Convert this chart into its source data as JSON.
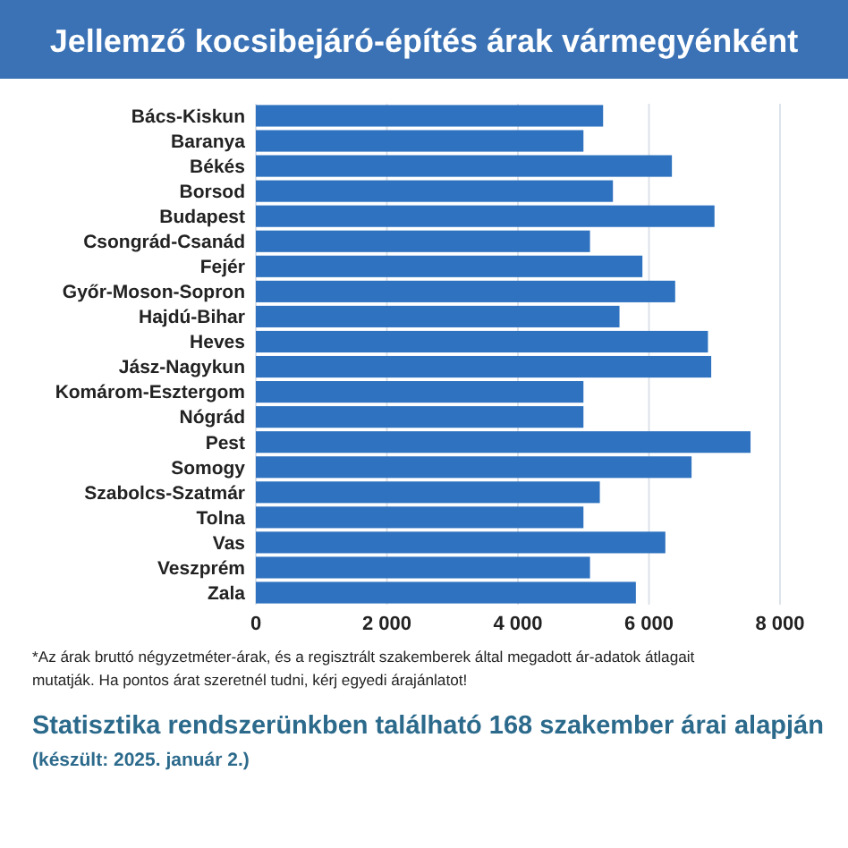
{
  "chart_data": {
    "type": "bar",
    "orientation": "horizontal",
    "title": "Jellemző kocsibejáró-építés árak vármegyénként",
    "categories": [
      "Bács-Kiskun",
      "Baranya",
      "Békés",
      "Borsod",
      "Budapest",
      "Csongrád-Csanád",
      "Fejér",
      "Győr-Moson-Sopron",
      "Hajdú-Bihar",
      "Heves",
      "Jász-Nagykun",
      "Komárom-Esztergom",
      "Nógrád",
      "Pest",
      "Somogy",
      "Szabolcs-Szatmár",
      "Tolna",
      "Vas",
      "Veszprém",
      "Zala"
    ],
    "values": [
      5300,
      5000,
      6350,
      5450,
      7000,
      5100,
      5900,
      6400,
      5550,
      6900,
      6950,
      5000,
      5000,
      7550,
      6650,
      5250,
      5000,
      6250,
      5100,
      5800
    ],
    "color": "#2f72c0",
    "xlim": [
      0,
      8000
    ],
    "xticks": [
      0,
      {
        "value": 2000,
        "label": "2 000"
      },
      {
        "value": 4000,
        "label": "4 000"
      },
      {
        "value": 6000,
        "label": "6 000"
      },
      {
        "value": 8000,
        "label": "8 000"
      }
    ],
    "grid": "x",
    "annotations": [
      "*Az árak bruttó négyzetméter-árak, és a regisztrált szakemberek által megadott ár-adatok átlagait mutatják. Ha pontos árat szeretnél tudni, kérj egyedi árajánlatot!",
      "Statisztika rendszerünkben található 168 szakember árai alapján",
      "(készült: 2025. január 2.)"
    ]
  }
}
